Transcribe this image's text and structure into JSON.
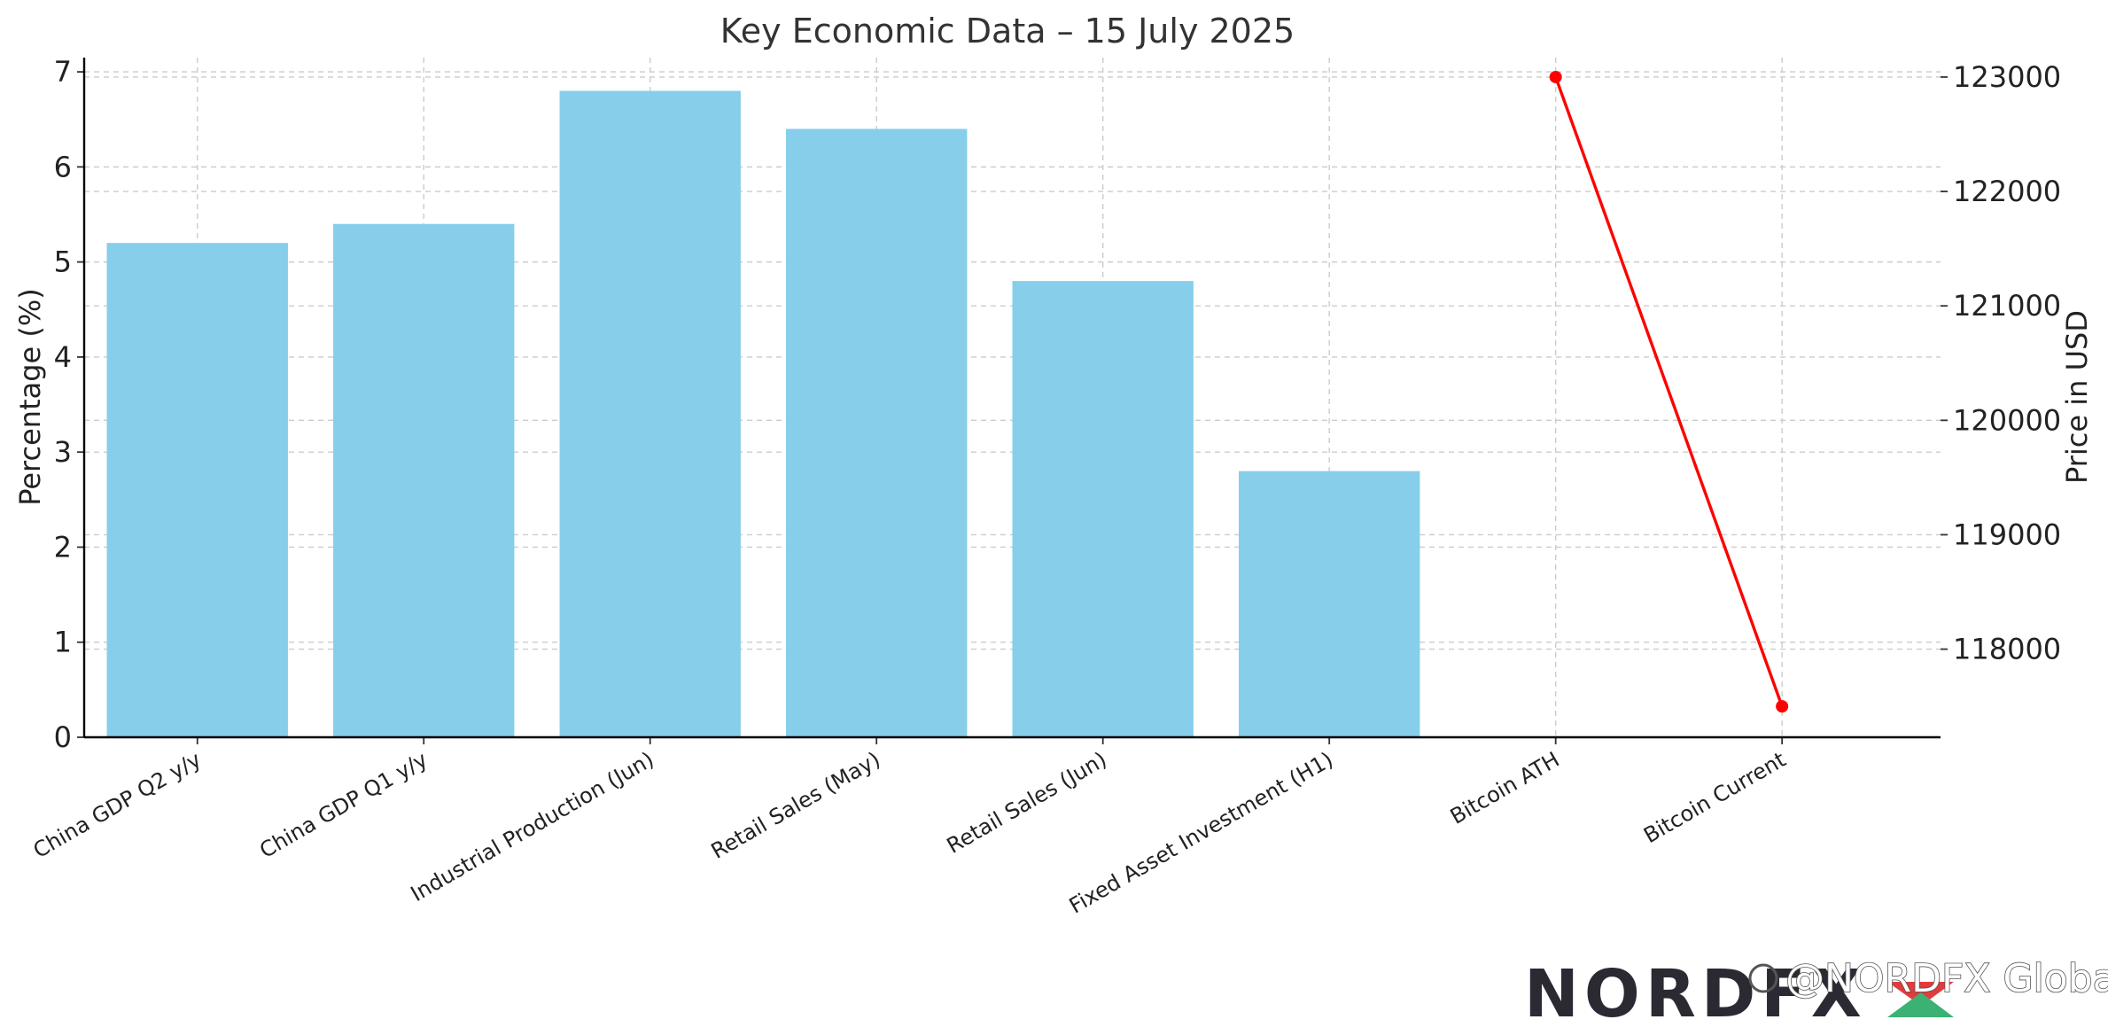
{
  "chart_data": {
    "type": "bar",
    "title": "Key Economic Data – 15 July 2025",
    "ylabel": "Percentage (%)",
    "y2label": "Price in USD",
    "categories": [
      "China GDP Q2 y/y",
      "China GDP Q1 y/y",
      "Industrial Production (Jun)",
      "Retail Sales (May)",
      "Retail Sales (Jun)",
      "Fixed Asset Investment (H1)",
      "Bitcoin ATH",
      "Bitcoin Current"
    ],
    "series": [
      {
        "axis": "left",
        "kind": "bar",
        "color": "#87ceeb",
        "values": [
          5.2,
          5.4,
          6.8,
          6.4,
          4.8,
          2.8,
          null,
          null
        ]
      },
      {
        "axis": "right",
        "kind": "line",
        "color": "#ff0000",
        "values": [
          null,
          null,
          null,
          null,
          null,
          null,
          123000,
          117500
        ]
      }
    ],
    "ylim": [
      0,
      7.15
    ],
    "y2lim": [
      117230,
      123170
    ],
    "yticks": [
      "0",
      "1",
      "2",
      "3",
      "4",
      "5",
      "6",
      "7"
    ],
    "y2ticks": [
      "118000",
      "119000",
      "120000",
      "121000",
      "122000",
      "123000"
    ],
    "grid": true
  },
  "watermark": {
    "brand": "NORDFX",
    "handle": "@NORDFX Global",
    "colors": {
      "dark": "#2b2a33",
      "red": "#e23b3b",
      "green": "#3bb273"
    }
  }
}
